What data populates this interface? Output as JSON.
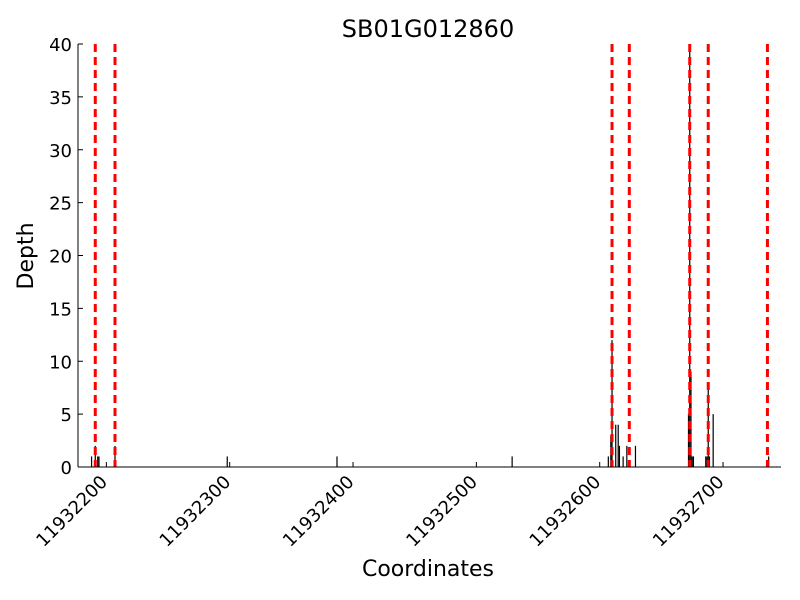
{
  "chart_data": {
    "type": "bar",
    "title": "SB01G012860",
    "xlabel": "Coordinates",
    "ylabel": "Depth",
    "xlim": [
      11932177,
      11932747
    ],
    "ylim": [
      0,
      40
    ],
    "xticks": [
      11932200,
      11932300,
      11932400,
      11932500,
      11932600,
      11932700
    ],
    "yticks": [
      0,
      5,
      10,
      15,
      20,
      25,
      30,
      35,
      40
    ],
    "bar_color": "#000000",
    "reference_line_color": "#ff0000",
    "depth": [
      {
        "x": 11932188,
        "y": 1
      },
      {
        "x": 11932191,
        "y": 2
      },
      {
        "x": 11932193,
        "y": 1
      },
      {
        "x": 11932194,
        "y": 1
      },
      {
        "x": 11932207,
        "y": 2
      },
      {
        "x": 11932298,
        "y": 1
      },
      {
        "x": 11932387,
        "y": 1
      },
      {
        "x": 11932529,
        "y": 1
      },
      {
        "x": 11932607,
        "y": 1
      },
      {
        "x": 11932609,
        "y": 3
      },
      {
        "x": 11932610,
        "y": 12
      },
      {
        "x": 11932613,
        "y": 4
      },
      {
        "x": 11932615,
        "y": 4
      },
      {
        "x": 11932616,
        "y": 2
      },
      {
        "x": 11932619,
        "y": 1
      },
      {
        "x": 11932622,
        "y": 2
      },
      {
        "x": 11932629,
        "y": 2
      },
      {
        "x": 11932672,
        "y": 5
      },
      {
        "x": 11932673,
        "y": 40
      },
      {
        "x": 11932674,
        "y": 9
      },
      {
        "x": 11932675,
        "y": 1
      },
      {
        "x": 11932676,
        "y": 1
      },
      {
        "x": 11932686,
        "y": 1
      },
      {
        "x": 11932687,
        "y": 1
      },
      {
        "x": 11932688,
        "y": 8
      },
      {
        "x": 11932689,
        "y": 1
      },
      {
        "x": 11932692,
        "y": 5
      },
      {
        "x": 11932737,
        "y": 1
      }
    ],
    "reference_lines_x": [
      11932191,
      11932207,
      11932610,
      11932624,
      11932673,
      11932688,
      11932736
    ]
  }
}
